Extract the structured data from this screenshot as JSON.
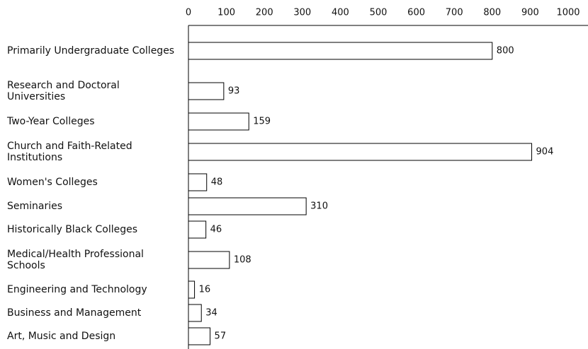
{
  "chart_data": {
    "type": "bar",
    "orientation": "horizontal",
    "categories": [
      "Primarily Undergraduate Colleges",
      "Research and Doctoral Universities",
      "Two-Year Colleges",
      "Church and Faith-Related Institutions",
      "Women's Colleges",
      "Seminaries",
      "Historically Black Colleges",
      "Medical/Health Professional Schools",
      "Engineering and Technology",
      "Business and Management",
      "Art, Music and Design"
    ],
    "values": [
      800,
      93,
      159,
      904,
      48,
      310,
      46,
      108,
      16,
      34,
      57
    ],
    "color": "#ffffff",
    "xlim": [
      0,
      1000
    ],
    "xticks": [
      0,
      100,
      200,
      300,
      400,
      500,
      600,
      700,
      800,
      900,
      1000
    ]
  }
}
